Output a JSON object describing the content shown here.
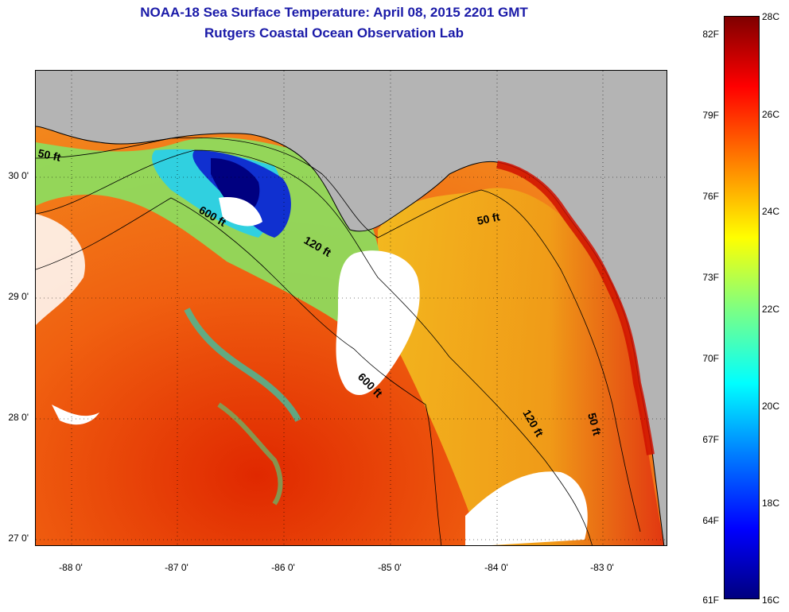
{
  "title": {
    "line1": "NOAA-18 Sea Surface Temperature:  April 08, 2015 2201 GMT",
    "line2": "Rutgers Coastal Ocean Observation Lab"
  },
  "map": {
    "latitude_labels": [
      "30 0'",
      "29 0'",
      "28 0'",
      "27 0'"
    ],
    "longitude_labels": [
      "-88 0'",
      "-87 0'",
      "-86 0'",
      "-85 0'",
      "-84 0'",
      "-83 0'"
    ],
    "contour_labels": [
      "50 ft",
      "600 ft",
      "120 ft",
      "50 ft",
      "600 ft",
      "120 ft",
      "50 ft"
    ],
    "land_color": "#b4b4b4",
    "cloud_color": "#ffffff"
  },
  "colorbar": {
    "celsius_labels": [
      "28C",
      "26C",
      "24C",
      "22C",
      "20C",
      "18C",
      "16C"
    ],
    "fahrenheit_labels": [
      "82F",
      "79F",
      "76F",
      "73F",
      "70F",
      "67F",
      "64F",
      "61F"
    ],
    "colors": [
      "#00007f",
      "#0000ff",
      "#0080ff",
      "#00ffff",
      "#80ff80",
      "#ffff00",
      "#ff8000",
      "#ff0000",
      "#7f0000"
    ]
  }
}
